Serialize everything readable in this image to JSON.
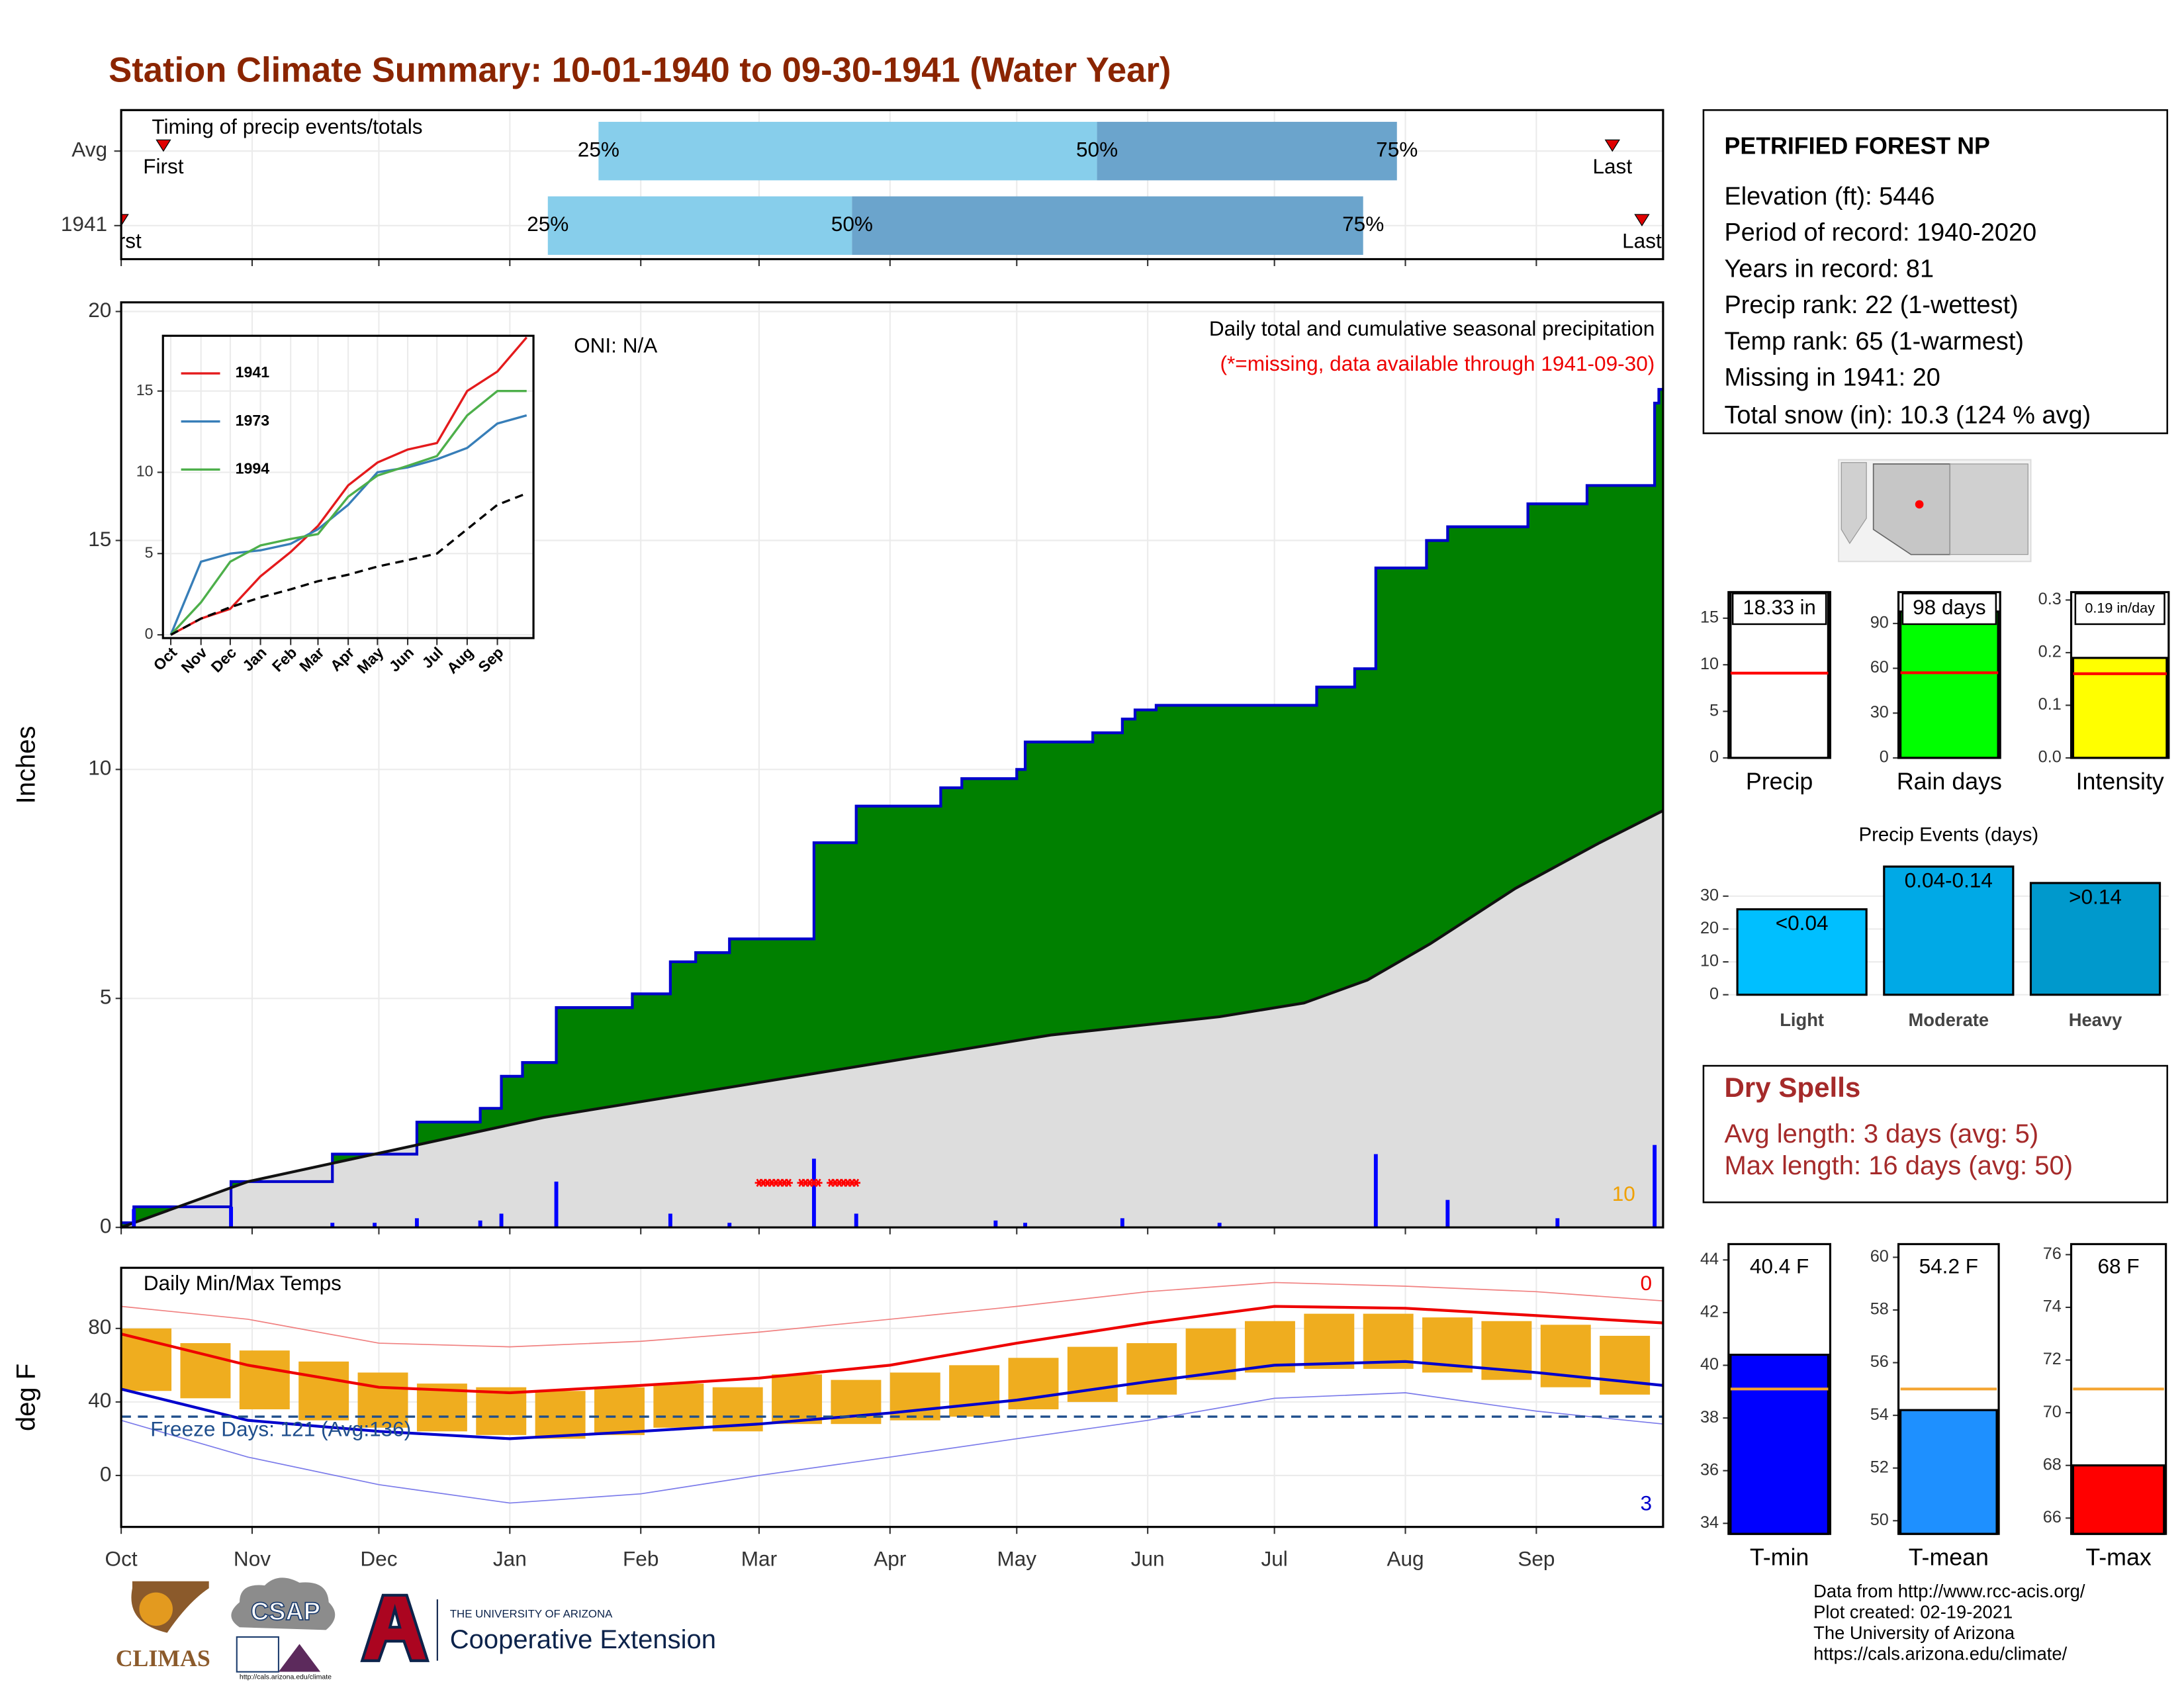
{
  "title": "Station Climate Summary: 10-01-1940 to 09-30-1941 (Water Year)",
  "chart_data": [
    {
      "type": "timeline",
      "title": "Timing of precip events/totals",
      "rows": [
        {
          "name": "Avg",
          "first": 10,
          "quartiles": [
            113,
            231,
            302
          ],
          "last": 353
        },
        {
          "name": "1941",
          "first": 0,
          "quartiles": [
            101,
            173,
            294
          ],
          "last": 360
        }
      ],
      "quartile_labels": [
        "25%",
        "50%",
        "75%"
      ],
      "first_label": "First",
      "last_label": "Last",
      "colors": [
        "#87ceeb",
        "#6ba4cc"
      ],
      "marker_color": "#e00000",
      "xlim": [
        0,
        365
      ],
      "xticks": [
        0,
        31,
        61,
        92,
        123,
        151,
        182,
        212,
        243,
        273,
        304,
        335
      ]
    },
    {
      "type": "step-area",
      "title": "Daily total and cumulative seasonal precipitation",
      "subtitle": "(*=missing, data available through 1941-09-30)",
      "annotation": "ONI: N/A",
      "count_annotation": 10,
      "ylabel": "Inches",
      "cumulative": {
        "color": "#008000",
        "line_color": "#0000cc",
        "x": [
          0,
          3,
          26,
          50,
          70,
          85,
          90,
          95,
          103,
          121,
          130,
          136,
          144,
          164,
          174,
          194,
          199,
          212,
          214,
          230,
          237,
          240,
          245,
          283,
          292,
          297,
          309,
          314,
          333,
          347,
          363,
          364
        ],
        "values": [
          0.1,
          0.45,
          1.0,
          1.6,
          2.3,
          2.6,
          3.3,
          3.6,
          4.8,
          5.1,
          5.8,
          6.0,
          6.3,
          8.4,
          9.2,
          9.6,
          9.8,
          10.0,
          10.6,
          10.8,
          11.1,
          11.3,
          11.4,
          11.8,
          12.2,
          14.4,
          15.0,
          15.3,
          15.8,
          16.2,
          18.0,
          18.3
        ]
      },
      "normal": {
        "color": "#dddddd",
        "line_color": "#111111",
        "x": [
          0,
          30,
          70,
          100,
          140,
          180,
          220,
          260,
          280,
          295,
          310,
          330,
          350,
          365
        ],
        "values": [
          0,
          1.0,
          1.8,
          2.4,
          3.0,
          3.6,
          4.2,
          4.6,
          4.9,
          5.4,
          6.2,
          7.4,
          8.4,
          9.1
        ]
      },
      "daily": {
        "color": "#0000ff",
        "x": [
          3,
          26,
          50,
          60,
          70,
          85,
          90,
          103,
          130,
          144,
          164,
          174,
          207,
          214,
          237,
          260,
          297,
          314,
          340,
          363
        ],
        "values": [
          0.4,
          0.45,
          0.1,
          0.1,
          0.2,
          0.15,
          0.3,
          1.0,
          0.3,
          0.1,
          1.5,
          0.3,
          0.15,
          0.1,
          0.2,
          0.1,
          1.6,
          0.6,
          0.2,
          1.8
        ]
      },
      "missing_days": [
        151,
        152,
        153,
        154,
        155,
        156,
        157,
        158,
        161,
        162,
        163,
        164,
        165,
        168,
        169,
        170,
        171,
        172,
        173,
        174
      ],
      "missing_color": "#ff0000",
      "xlim": [
        0,
        365
      ],
      "xticks": [
        0,
        31,
        61,
        92,
        123,
        151,
        182,
        212,
        243,
        273,
        304,
        335
      ],
      "ylim": [
        0,
        20.2
      ],
      "yticks": [
        0,
        5,
        10,
        15,
        20
      ],
      "grid": true
    },
    {
      "type": "line",
      "x": [
        0,
        31,
        61,
        92,
        123,
        151,
        182,
        212,
        243,
        273,
        304,
        335,
        365
      ],
      "series": [
        {
          "name": "1941",
          "color": "#e41a1c",
          "values": [
            0,
            1.0,
            1.6,
            3.6,
            5.1,
            6.7,
            9.2,
            10.6,
            11.4,
            11.8,
            15.0,
            16.2,
            18.3
          ]
        },
        {
          "name": "1973",
          "color": "#377eb8",
          "values": [
            0,
            4.5,
            5.0,
            5.2,
            5.6,
            6.5,
            8.0,
            10.0,
            10.3,
            10.8,
            11.5,
            13.0,
            13.5
          ]
        },
        {
          "name": "1994",
          "color": "#4daf4a",
          "values": [
            0,
            2.0,
            4.5,
            5.5,
            5.9,
            6.2,
            8.5,
            9.8,
            10.4,
            11.0,
            13.5,
            15.0,
            15.0
          ]
        },
        {
          "color": "#000000",
          "dashed": true,
          "values": [
            0,
            1.0,
            1.7,
            2.3,
            2.8,
            3.3,
            3.7,
            4.2,
            4.6,
            5.0,
            6.5,
            8.0,
            8.7
          ]
        }
      ],
      "xlim": [
        -8,
        372
      ],
      "xticks": [
        {
          "value": 0,
          "label": "Oct"
        },
        {
          "value": 31,
          "label": "Nov"
        },
        {
          "value": 61,
          "label": "Dec"
        },
        {
          "value": 92,
          "label": "Jan"
        },
        {
          "value": 123,
          "label": "Feb"
        },
        {
          "value": 151,
          "label": "Mar"
        },
        {
          "value": 182,
          "label": "Apr"
        },
        {
          "value": 212,
          "label": "May"
        },
        {
          "value": 243,
          "label": "Jun"
        },
        {
          "value": 273,
          "label": "Jul"
        },
        {
          "value": 304,
          "label": "Aug"
        },
        {
          "value": 335,
          "label": "Sep"
        }
      ],
      "ylim": [
        -0.2,
        18.4
      ],
      "yticks": [
        0,
        5,
        10,
        15
      ],
      "grid": true
    },
    {
      "type": "range-bar",
      "title": "Daily Min/Max Temps",
      "ylabel": "deg F",
      "freeze_label": "Freeze Days: 121 (Avg:136)",
      "freeze_line": 32,
      "freeze_color": "#1f4e8c",
      "record_high_count": 0,
      "record_low_count": 3,
      "bars": {
        "color": "#efad1f",
        "x": [
          0,
          14,
          28,
          42,
          56,
          70,
          84,
          98,
          112,
          126,
          140,
          154,
          168,
          182,
          196,
          210,
          224,
          238,
          252,
          266,
          280,
          294,
          308,
          322,
          336,
          350
        ],
        "high": [
          80,
          72,
          68,
          62,
          56,
          50,
          48,
          46,
          48,
          50,
          48,
          55,
          52,
          56,
          60,
          64,
          70,
          72,
          80,
          84,
          88,
          88,
          86,
          84,
          82,
          76
        ],
        "low": [
          46,
          42,
          36,
          30,
          26,
          24,
          22,
          20,
          22,
          26,
          24,
          28,
          28,
          30,
          32,
          36,
          40,
          44,
          52,
          56,
          58,
          58,
          56,
          52,
          48,
          44
        ]
      },
      "lines_x": [
        0,
        30,
        61,
        92,
        123,
        151,
        182,
        212,
        243,
        273,
        304,
        335,
        365
      ],
      "normal_high": {
        "color": "#ee0000",
        "values": [
          77,
          60,
          48,
          45,
          49,
          53,
          60,
          72,
          83,
          92,
          91,
          87,
          83
        ]
      },
      "normal_low": {
        "color": "#0000cc",
        "values": [
          47,
          30,
          24,
          20,
          24,
          28,
          34,
          41,
          51,
          60,
          62,
          56,
          49
        ]
      },
      "record_high": {
        "color": "#f08080",
        "values": [
          92,
          85,
          72,
          70,
          73,
          78,
          85,
          92,
          100,
          105,
          103,
          100,
          95
        ]
      },
      "record_low": {
        "color": "#7b7bea",
        "values": [
          30,
          10,
          -5,
          -15,
          -10,
          0,
          10,
          20,
          30,
          42,
          45,
          35,
          28
        ]
      },
      "xlim": [
        0,
        365
      ],
      "xticks": [
        {
          "value": 0,
          "label": "Oct"
        },
        {
          "value": 31,
          "label": "Nov"
        },
        {
          "value": 61,
          "label": "Dec"
        },
        {
          "value": 92,
          "label": "Jan"
        },
        {
          "value": 123,
          "label": "Feb"
        },
        {
          "value": 151,
          "label": "Mar"
        },
        {
          "value": 182,
          "label": "Apr"
        },
        {
          "value": 212,
          "label": "May"
        },
        {
          "value": 243,
          "label": "Jun"
        },
        {
          "value": 273,
          "label": "Jul"
        },
        {
          "value": 304,
          "label": "Aug"
        },
        {
          "value": 335,
          "label": "Sep"
        }
      ],
      "ylim": [
        -28,
        113
      ],
      "yticks": [
        0,
        40,
        80
      ],
      "grid": true
    },
    {
      "type": "bar",
      "categories": [
        "Precip"
      ],
      "values": [
        18.33
      ],
      "value_labels": [
        "18.33 in"
      ],
      "normal": [
        9.1
      ],
      "color": "#ffffff",
      "normal_color": "#ff0000",
      "ylim": [
        0,
        17.8
      ],
      "yticks": [
        0,
        5,
        10,
        15
      ]
    },
    {
      "type": "bar",
      "categories": [
        "Rain days"
      ],
      "values": [
        98
      ],
      "value_labels": [
        "98 days"
      ],
      "normal": [
        57
      ],
      "color": "#00ff00",
      "normal_color": "#ff0000",
      "ylim": [
        0,
        111
      ],
      "yticks": [
        0,
        30,
        60,
        90
      ]
    },
    {
      "type": "bar",
      "categories": [
        "Intensity"
      ],
      "values": [
        0.19
      ],
      "value_labels": [
        "0.19 in/day"
      ],
      "normal": [
        0.16
      ],
      "color": "#ffff00",
      "normal_color": "#ff0000",
      "ylim": [
        0,
        0.315
      ],
      "yticks": [
        {
          "value": 0,
          "label": "0.0"
        },
        0.1,
        0.2,
        0.3
      ]
    },
    {
      "type": "bar",
      "title": "Precip Events (days)",
      "categories": [
        "Light",
        "Moderate",
        "Heavy"
      ],
      "values": [
        26,
        39,
        34
      ],
      "ranges": [
        "<0.04",
        "0.04-0.14",
        ">0.14"
      ],
      "colors": [
        "#00bfff",
        "#00a9e6",
        "#0099cc"
      ],
      "ylim": [
        0,
        39
      ],
      "yticks": [
        0,
        10,
        20,
        30
      ],
      "grid": true
    },
    {
      "type": "bar",
      "categories": [
        "T-min"
      ],
      "values": [
        40.4
      ],
      "value_labels": [
        "40.4 F"
      ],
      "normal": [
        39.1
      ],
      "color": "#0000ff",
      "normal_color": "#f4a430",
      "ylim": [
        33.6,
        44.6
      ],
      "yticks": [
        34,
        36,
        38,
        40,
        42,
        44
      ]
    },
    {
      "type": "bar",
      "categories": [
        "T-mean"
      ],
      "values": [
        54.2
      ],
      "value_labels": [
        "54.2 F"
      ],
      "normal": [
        55.0
      ],
      "color": "#1e90ff",
      "normal_color": "#f4a430",
      "ylim": [
        49.5,
        60.5
      ],
      "yticks": [
        50,
        52,
        54,
        56,
        58,
        60
      ]
    },
    {
      "type": "bar",
      "categories": [
        "T-max"
      ],
      "values": [
        68
      ],
      "value_labels": [
        "68 F"
      ],
      "normal": [
        70.9
      ],
      "color": "#ff0000",
      "normal_color": "#f4a430",
      "ylim": [
        65.4,
        76.4
      ],
      "yticks": [
        66,
        68,
        70,
        72,
        74,
        76
      ]
    }
  ],
  "station": {
    "name": "PETRIFIED FOREST NP",
    "lines": [
      "Elevation (ft): 5446",
      "Period of record: 1940-2020",
      "Years in record: 81",
      "Precip rank: 22 (1-wettest)",
      "Temp rank: 65 (1-warmest)",
      "Missing in 1941: 20",
      "Total snow (in): 10.3 (124 % avg)"
    ]
  },
  "dry_spells": {
    "title": "Dry Spells",
    "lines": [
      "Avg length: 3 days (avg: 5)",
      "Max length: 16 days (avg: 50)"
    ]
  },
  "footer": [
    "Data from http://www.rcc-acis.org/",
    "Plot created: 02-19-2021",
    "The University of Arizona",
    "https://cals.arizona.edu/climate/"
  ],
  "logos": {
    "climas": "CLIMAS",
    "csap": "CSAP",
    "csap_url": "http://cals.arizona.edu/climate",
    "ua": "THE UNIVERSITY OF ARIZONA",
    "extension": "Cooperative Extension"
  }
}
